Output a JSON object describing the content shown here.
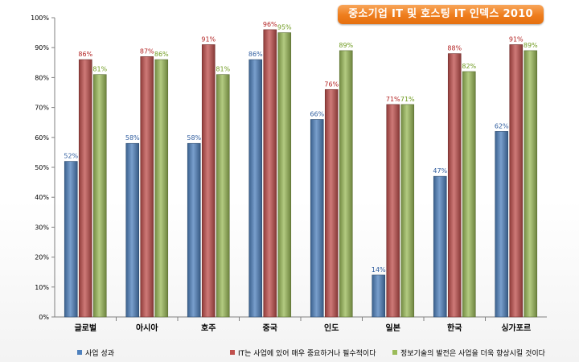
{
  "chart_data": {
    "type": "bar",
    "title": "중소기업 IT 및 호스팅 IT 인덱스 2010",
    "categories": [
      "글로벌",
      "아시아",
      "호주",
      "중국",
      "인도",
      "일본",
      "한국",
      "싱가포르"
    ],
    "series": [
      {
        "name": "사업 성과",
        "color": "#4f81bd",
        "label_color": "#2e5c9e",
        "values": [
          52,
          58,
          58,
          86,
          66,
          14,
          47,
          62
        ]
      },
      {
        "name": "IT는 사업에 있어 매우 중요하거나 필수적이다",
        "color": "#c0504d",
        "label_color": "#b22222",
        "values": [
          86,
          87,
          91,
          96,
          76,
          71,
          88,
          91
        ]
      },
      {
        "name": "정보기술의 발전은 사업을 더욱 향상시킬 것이다",
        "color": "#9bbb59",
        "label_color": "#6e9a1e",
        "values": [
          81,
          86,
          81,
          95,
          89,
          71,
          82,
          89
        ]
      }
    ],
    "value_suffix": "%",
    "y_ticks": [
      "0%",
      "10%",
      "20%",
      "30%",
      "40%",
      "50%",
      "60%",
      "70%",
      "80%",
      "90%",
      "100%"
    ],
    "ylim": [
      0,
      100
    ],
    "grid": false,
    "legend_position": "bottom"
  }
}
